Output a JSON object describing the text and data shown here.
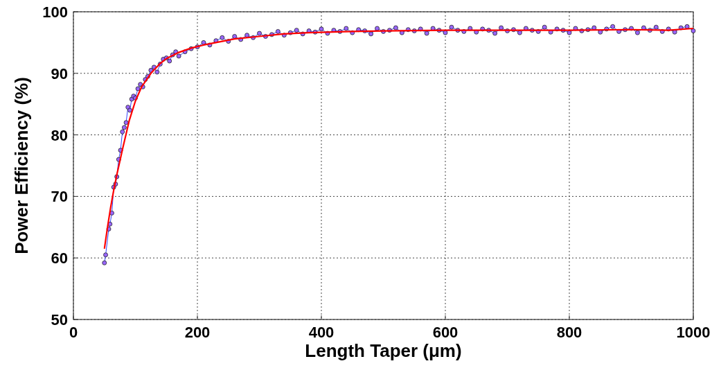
{
  "chart_data": {
    "type": "line",
    "xlabel": "Length Taper (μm)",
    "ylabel": "Power Efficiency (%)",
    "xlim": [
      0,
      1000
    ],
    "ylim": [
      50,
      100
    ],
    "xticks": [
      0,
      200,
      400,
      600,
      800,
      1000
    ],
    "yticks": [
      50,
      60,
      70,
      80,
      90,
      100
    ],
    "grid": true,
    "series": [
      {
        "marker": "circle",
        "color": "#9966ff",
        "x": [
          50,
          52,
          57,
          59,
          62,
          65,
          68,
          70,
          73,
          76,
          79,
          82,
          85,
          88,
          91,
          94,
          97,
          100,
          104,
          108,
          112,
          116,
          120,
          125,
          130,
          135,
          140,
          145,
          150,
          155,
          160,
          165,
          170,
          180,
          190,
          200,
          210,
          220,
          230,
          240,
          250,
          260,
          270,
          280,
          290,
          300,
          310,
          320,
          330,
          340,
          350,
          360,
          370,
          380,
          390,
          400,
          410,
          420,
          430,
          440,
          450,
          460,
          470,
          480,
          490,
          500,
          510,
          520,
          530,
          540,
          550,
          560,
          570,
          580,
          590,
          600,
          610,
          620,
          630,
          640,
          650,
          660,
          670,
          680,
          690,
          700,
          710,
          720,
          730,
          740,
          750,
          760,
          770,
          780,
          790,
          800,
          810,
          820,
          830,
          840,
          850,
          860,
          870,
          880,
          890,
          900,
          910,
          920,
          930,
          940,
          950,
          960,
          970,
          980,
          990,
          1000
        ],
        "values": [
          59.2,
          60.5,
          64.7,
          65.5,
          67.3,
          71.5,
          72.0,
          73.2,
          76.0,
          77.5,
          80.5,
          81.2,
          82.0,
          84.5,
          84.0,
          85.8,
          86.3,
          86.0,
          87.5,
          88.2,
          87.8,
          89.0,
          89.5,
          90.5,
          91.0,
          90.2,
          91.5,
          92.3,
          92.5,
          92.0,
          93.0,
          93.5,
          92.8,
          93.5,
          94.0,
          94.3,
          95.0,
          94.6,
          95.3,
          95.8,
          95.2,
          96.0,
          95.5,
          96.2,
          95.8,
          96.5,
          96.0,
          96.3,
          96.8,
          96.2,
          96.6,
          97.0,
          96.4,
          96.9,
          96.7,
          97.2,
          96.5,
          97.0,
          96.8,
          97.3,
          96.6,
          97.1,
          96.9,
          96.4,
          97.3,
          96.8,
          97.0,
          97.4,
          96.6,
          97.1,
          96.9,
          97.2,
          96.5,
          97.3,
          97.0,
          96.6,
          97.5,
          97.0,
          96.8,
          97.3,
          96.7,
          97.2,
          97.0,
          96.5,
          97.4,
          96.9,
          97.1,
          96.6,
          97.3,
          97.0,
          96.8,
          97.5,
          96.7,
          97.2,
          97.0,
          96.6,
          97.3,
          96.9,
          97.1,
          97.4,
          96.7,
          97.2,
          97.6,
          96.8,
          97.1,
          97.3,
          96.6,
          97.4,
          97.0,
          97.5,
          96.8,
          97.2,
          96.7,
          97.4,
          97.6,
          96.9
        ]
      },
      {
        "marker": "none",
        "color": "#ff0000",
        "x": [
          50,
          55,
          60,
          65,
          70,
          80,
          90,
          100,
          110,
          125,
          140,
          150,
          170,
          190,
          210,
          230,
          260,
          300,
          340,
          380,
          450,
          500,
          600,
          700,
          800,
          900,
          960,
          1000
        ],
        "values": [
          61.5,
          65.0,
          68.2,
          71.0,
          73.5,
          78.0,
          82.3,
          85.5,
          87.8,
          90.0,
          91.6,
          92.4,
          93.4,
          94.1,
          94.6,
          95.0,
          95.6,
          96.0,
          96.4,
          96.6,
          96.8,
          96.9,
          97.0,
          97.0,
          97.0,
          97.1,
          97.0,
          97.3
        ]
      }
    ]
  }
}
